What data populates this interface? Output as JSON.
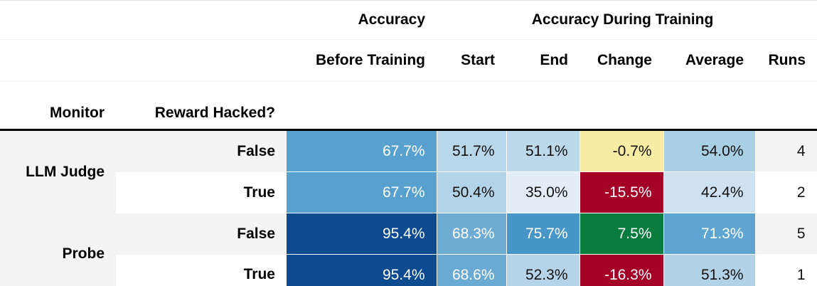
{
  "colors": {
    "header_rule": "#000000",
    "zebra_gray": "#f4f4f4",
    "white": "#ffffff",
    "text_dark": "#111111",
    "text_light": "#ffffff",
    "blue_dark": "#0d4a90",
    "blue_medium": "#58a1cf",
    "red_negative": "#a50026",
    "green_positive": "#0a7c3e",
    "yellow_neutral": "#f8eca4"
  },
  "table": {
    "col_groups": [
      {
        "label": "Accuracy",
        "span": 1
      },
      {
        "label": "Accuracy During Training",
        "span": 5
      }
    ],
    "columns": [
      "Before Training",
      "Start",
      "End",
      "Change",
      "Average",
      "Runs"
    ],
    "index_names": [
      "Monitor",
      "Reward Hacked?"
    ],
    "row_groups": [
      {
        "monitor": "LLM Judge",
        "monitor_bg": "#f4f4f4",
        "rows": [
          {
            "reward_hacked": "False",
            "index_bg": "#f4f4f4",
            "cells": [
              {
                "text": "67.7%",
                "bg": "#58a1cf",
                "fg": "#ffffff"
              },
              {
                "text": "51.7%",
                "bg": "#b8d6ea",
                "fg": "#111111"
              },
              {
                "text": "51.1%",
                "bg": "#bcd8eb",
                "fg": "#111111"
              },
              {
                "text": "-0.7%",
                "bg": "#f8eca4",
                "fg": "#111111"
              },
              {
                "text": "54.0%",
                "bg": "#a9cfe5",
                "fg": "#111111"
              },
              {
                "text": "4",
                "bg": "#f4f4f4",
                "fg": "#111111"
              }
            ]
          },
          {
            "reward_hacked": "True",
            "index_bg": "#ffffff",
            "cells": [
              {
                "text": "67.7%",
                "bg": "#58a1cf",
                "fg": "#ffffff"
              },
              {
                "text": "50.4%",
                "bg": "#b3d3e8",
                "fg": "#111111"
              },
              {
                "text": "35.0%",
                "bg": "#e2edf7",
                "fg": "#111111"
              },
              {
                "text": "-15.5%",
                "bg": "#a50026",
                "fg": "#ffffff"
              },
              {
                "text": "42.4%",
                "bg": "#cde1f1",
                "fg": "#111111"
              },
              {
                "text": "2",
                "bg": "#ffffff",
                "fg": "#111111"
              }
            ]
          }
        ]
      },
      {
        "monitor": "Probe",
        "monitor_bg": "#f4f4f4",
        "rows": [
          {
            "reward_hacked": "False",
            "index_bg": "#f4f4f4",
            "cells": [
              {
                "text": "95.4%",
                "bg": "#0d4a90",
                "fg": "#ffffff"
              },
              {
                "text": "68.3%",
                "bg": "#6dabd3",
                "fg": "#ffffff"
              },
              {
                "text": "75.7%",
                "bg": "#4896c8",
                "fg": "#ffffff"
              },
              {
                "text": "7.5%",
                "bg": "#0a7c3e",
                "fg": "#ffffff"
              },
              {
                "text": "71.3%",
                "bg": "#5ea5d1",
                "fg": "#ffffff"
              },
              {
                "text": "5",
                "bg": "#f4f4f4",
                "fg": "#111111"
              }
            ]
          },
          {
            "reward_hacked": "True",
            "index_bg": "#ffffff",
            "cells": [
              {
                "text": "95.4%",
                "bg": "#0d4a90",
                "fg": "#ffffff"
              },
              {
                "text": "68.6%",
                "bg": "#6aaad2",
                "fg": "#ffffff"
              },
              {
                "text": "52.3%",
                "bg": "#b6d4e9",
                "fg": "#111111"
              },
              {
                "text": "-16.3%",
                "bg": "#a50026",
                "fg": "#ffffff"
              },
              {
                "text": "51.3%",
                "bg": "#b2d2e8",
                "fg": "#111111"
              },
              {
                "text": "1",
                "bg": "#ffffff",
                "fg": "#111111"
              }
            ]
          }
        ]
      }
    ]
  },
  "chart_data": {
    "type": "table",
    "title": "",
    "column_groups": [
      "Accuracy (Before Training)",
      "Accuracy During Training (Start, End, Change, Average)",
      "Runs"
    ],
    "columns": [
      "Monitor",
      "Reward Hacked?",
      "Accuracy Before Training",
      "Start",
      "End",
      "Change",
      "Average",
      "Runs"
    ],
    "rows": [
      [
        "LLM Judge",
        "False",
        67.7,
        51.7,
        51.1,
        -0.7,
        54.0,
        4
      ],
      [
        "LLM Judge",
        "True",
        67.7,
        50.4,
        35.0,
        -15.5,
        42.4,
        2
      ],
      [
        "Probe",
        "False",
        95.4,
        68.3,
        75.7,
        7.5,
        71.3,
        5
      ],
      [
        "Probe",
        "True",
        95.4,
        68.6,
        52.3,
        -16.3,
        51.3,
        1
      ]
    ],
    "layout_hints": {
      "heatmap_columns": [
        "Accuracy Before Training",
        "Start",
        "End",
        "Average"
      ],
      "heatmap_colormap": "Blues",
      "change_colormap": "RdYlGn",
      "zebra_striping": true
    }
  }
}
